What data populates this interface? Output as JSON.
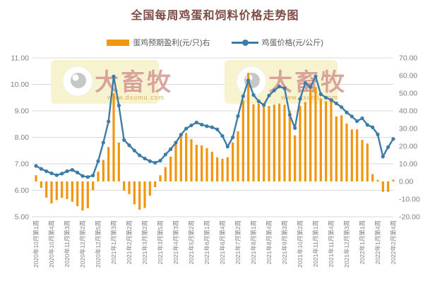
{
  "title": "全国每周鸡蛋和饲料价格走势图",
  "legend": {
    "profit_label": "蛋鸡预期盈利(元/只)右",
    "price_label": "鸡蛋价格(元/公斤)"
  },
  "watermark": {
    "text": "大畜牧",
    "url": "www.dxumu.com"
  },
  "colors": {
    "bar": "#F0960F",
    "line": "#3D7CA6",
    "title": "#7d4a45",
    "grid": "#D9D9D9",
    "axis_text": "#7F7F7F",
    "legend_text": "#595959",
    "watermark_bg": "#F8F2CC",
    "watermark_text": "#CE8A85",
    "watermark_url": "#D8A24E"
  },
  "chart_data": {
    "type": "bar",
    "subtype": "bar+line combo, dual axis",
    "title": "全国每周鸡蛋和饲料价格走势图",
    "categories": [
      "2020年10月第1周",
      "2020年10月第4周",
      "2020年11月第3周",
      "2020年12月第2周",
      "2020年12月第5周",
      "2021年1月第3周",
      "2021年2月第2周",
      "2021年3月第2周",
      "2021年3月第5周",
      "2021年4月第3周",
      "2021年5月第2周",
      "2021年6月第1周",
      "2021年6月第4周",
      "2021年7月第2周",
      "2021年8月第1周",
      "2021年8月第4周",
      "2021年9月第3周",
      "2021年10月第2周",
      "2021年11月第1周",
      "2021年11月第4周",
      "2021年12月第3周",
      "2022年1月第1周",
      "2022年1月第4周",
      "2022年2月第4周"
    ],
    "label_step": 3,
    "series": [
      {
        "name": "蛋鸡预期盈利(元/只)右",
        "type": "bar",
        "axis": "right",
        "values": [
          3.5,
          -3.6,
          -9.2,
          -12.5,
          -10.5,
          -9.3,
          -10.0,
          -11.5,
          -14.0,
          -16.5,
          -15.2,
          -4.9,
          5.5,
          12.2,
          19.5,
          50.0,
          22.0,
          -5.2,
          -7.2,
          -13.0,
          -16.0,
          -15.0,
          -8.0,
          -3.2,
          3.5,
          8.1,
          14.1,
          22.8,
          26.1,
          27.5,
          23.9,
          20.8,
          20.4,
          18.8,
          16.8,
          13.7,
          12.8,
          13.7,
          22.1,
          28.4,
          46.1,
          61.5,
          43.7,
          44.1,
          43.5,
          42.8,
          43.5,
          44.1,
          43.5,
          40.0,
          26.1,
          42.8,
          45.0,
          55.0,
          53.5,
          46.8,
          45.5,
          46.1,
          36.8,
          37.5,
          32.8,
          29.5,
          29.5,
          23.5,
          21.5,
          4.1,
          0.8,
          -5.9,
          -5.9,
          1.0
        ]
      },
      {
        "name": "鸡蛋价格(元/公斤)",
        "type": "line",
        "axis": "left",
        "values": [
          6.92,
          6.81,
          6.72,
          6.64,
          6.57,
          6.63,
          6.72,
          6.77,
          6.67,
          6.54,
          6.5,
          6.56,
          7.1,
          7.8,
          8.6,
          10.3,
          9.2,
          7.9,
          7.7,
          7.5,
          7.32,
          7.2,
          7.1,
          7.04,
          7.12,
          7.35,
          7.55,
          7.8,
          8.1,
          8.33,
          8.45,
          8.56,
          8.48,
          8.42,
          8.38,
          8.3,
          8.05,
          7.65,
          8.0,
          8.8,
          9.55,
          10.15,
          9.6,
          9.36,
          9.22,
          9.58,
          9.77,
          9.92,
          9.85,
          8.85,
          8.35,
          9.45,
          10.05,
          9.9,
          10.3,
          9.63,
          9.5,
          9.41,
          9.28,
          9.14,
          8.94,
          8.79,
          8.61,
          8.72,
          8.47,
          8.38,
          8.11,
          7.27,
          7.63,
          7.94
        ]
      }
    ],
    "left_axis": {
      "min": 5,
      "max": 11,
      "ticks": [
        "11.00",
        "10.00",
        "9.00",
        "8.00",
        "7.00",
        "6.00",
        "5.00"
      ]
    },
    "right_axis": {
      "min": -20,
      "max": 70,
      "ticks": [
        "70.00",
        "60.00",
        "50.00",
        "40.00",
        "30.00",
        "20.00",
        "10.00",
        "0.00",
        "-10.00",
        "-20.00"
      ]
    },
    "grid": true,
    "legend_position": "top"
  }
}
